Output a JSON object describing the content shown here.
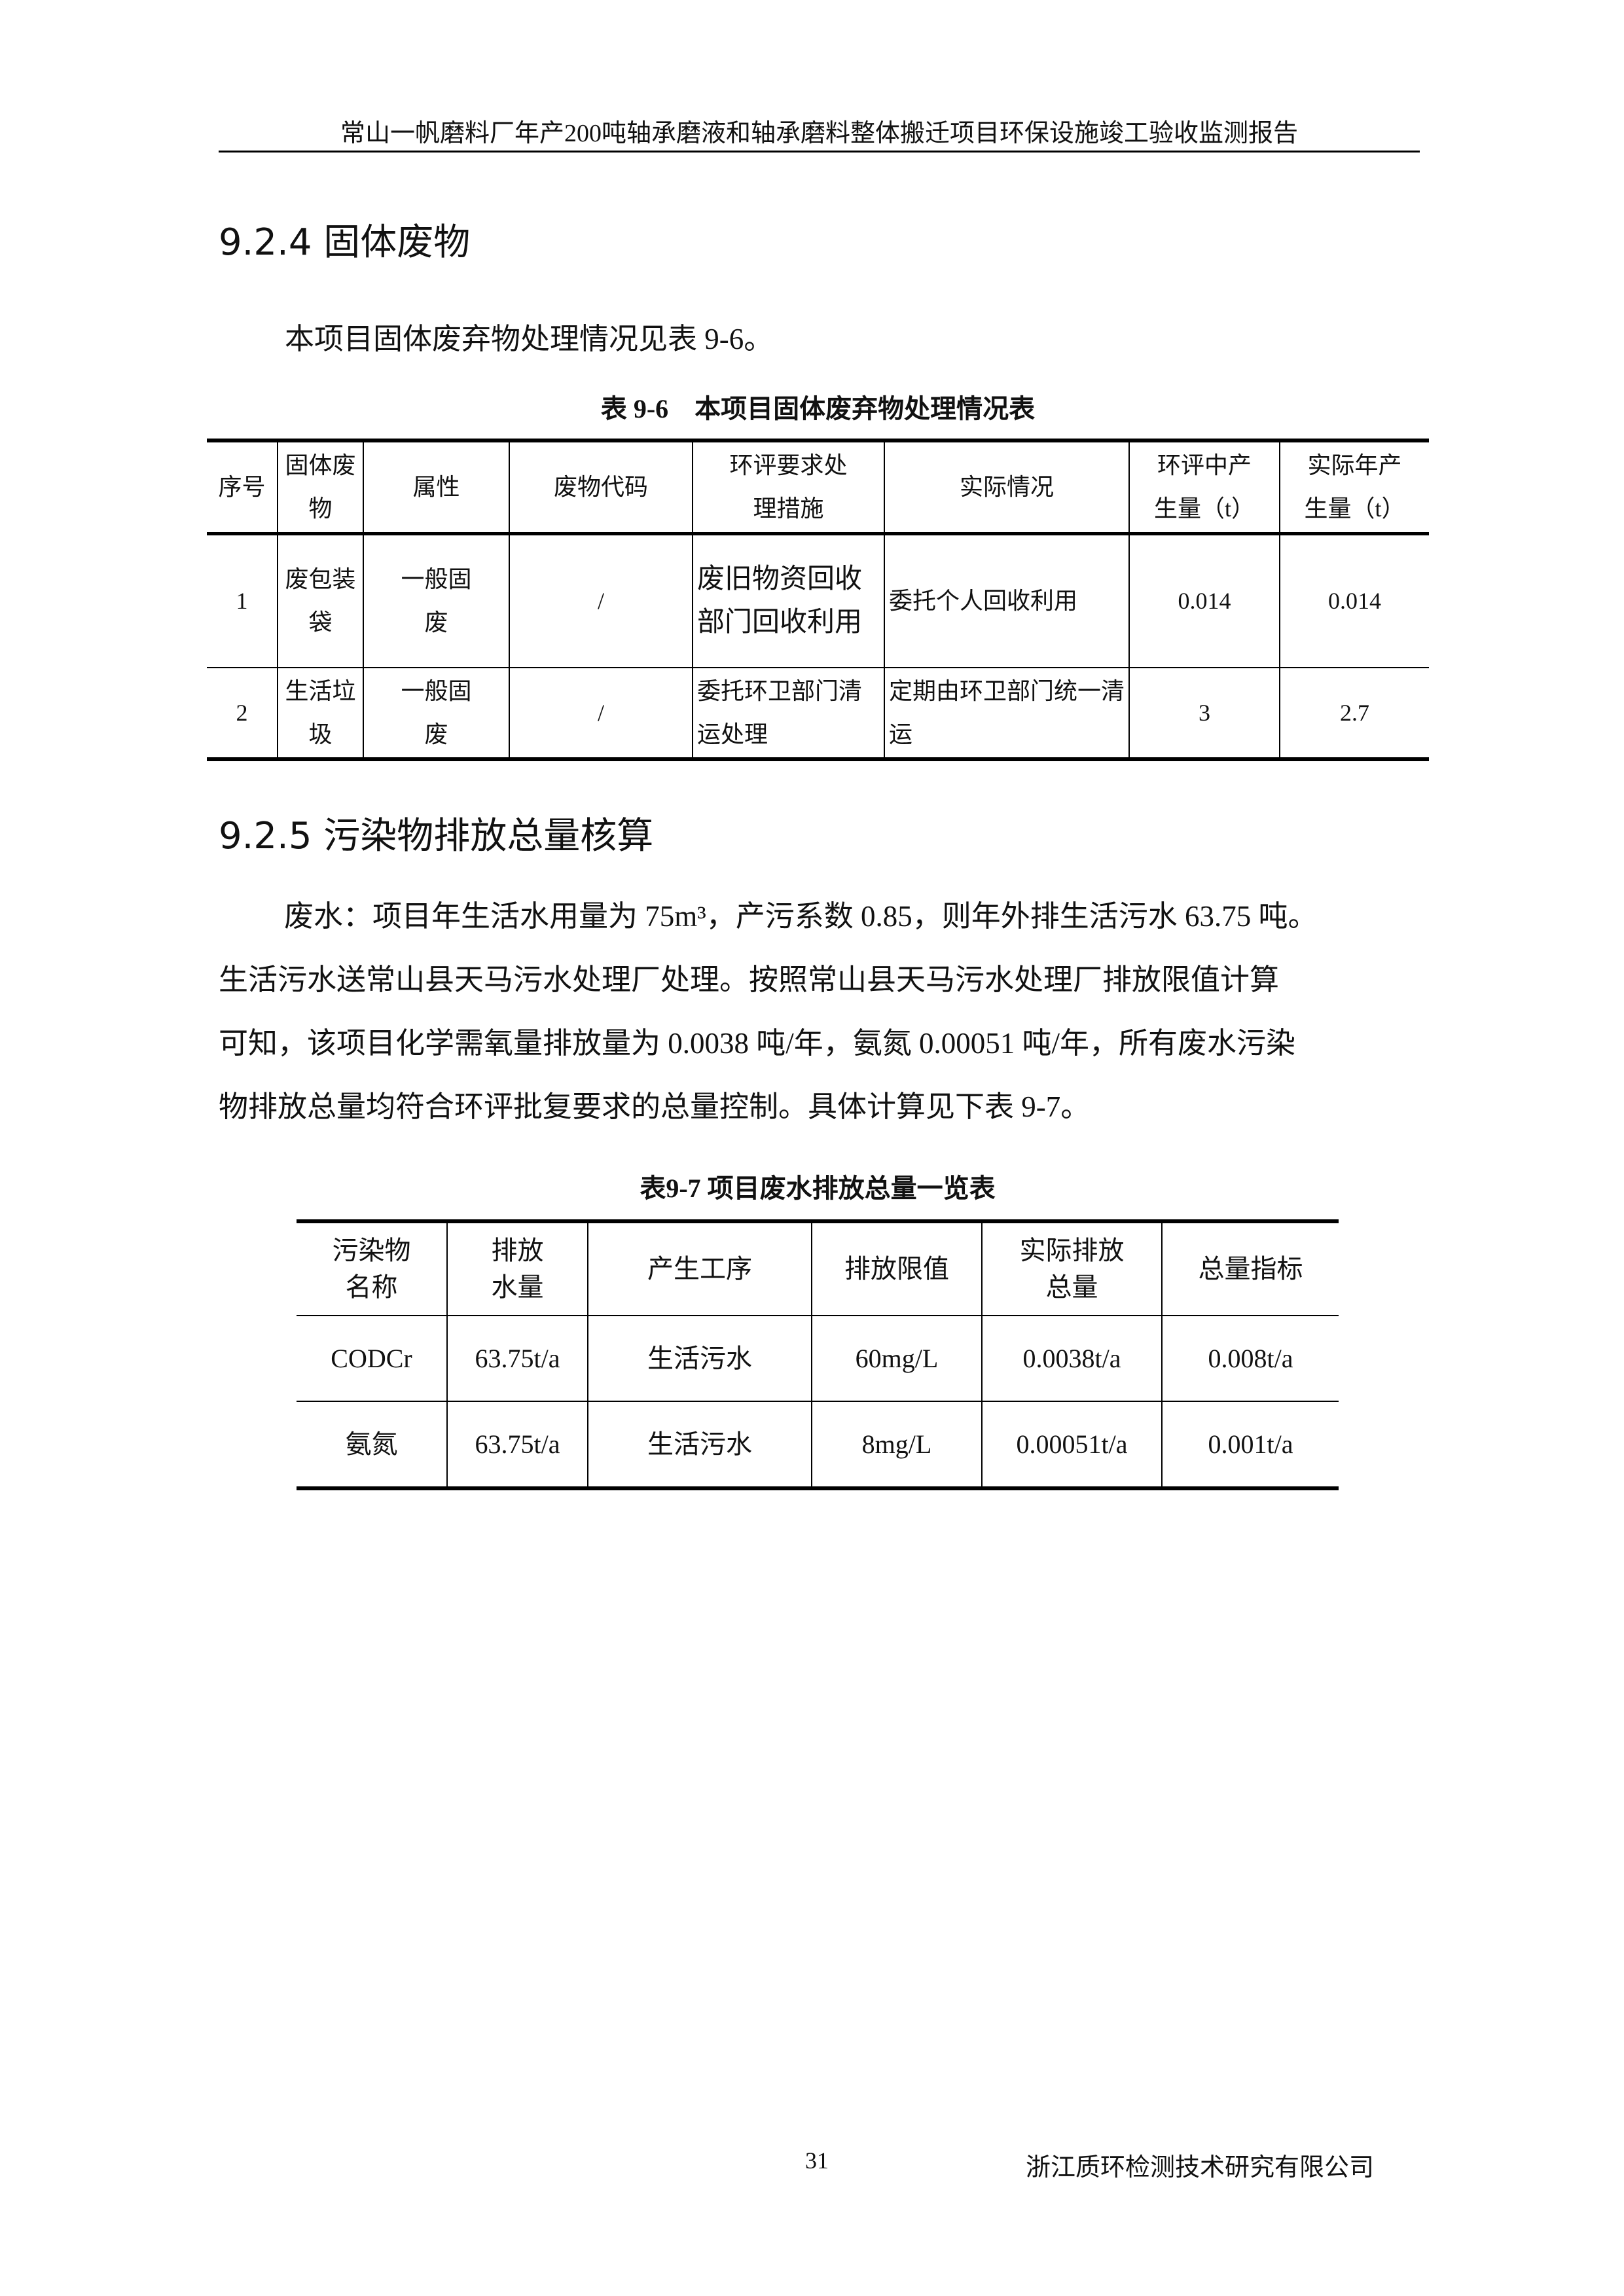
{
  "header": "常山一帆磨料厂年产200吨轴承磨液和轴承磨料整体搬迁项目环保设施竣工验收监测报告",
  "section1": {
    "title": "9.2.4 固体废物",
    "intro": "本项目固体废弃物处理情况见表 9-6。",
    "caption": "表 9-6　本项目固体废弃物处理情况表",
    "headers": [
      "序号",
      "固体废物",
      "属性",
      "废物代码",
      "环评要求处理措施",
      "实际情况",
      "环评中产生量（t）",
      "实际年产生量（t）"
    ],
    "rows": [
      [
        "1",
        "废包装袋",
        "一般固废",
        "/",
        "废旧物资回收部门回收利用",
        "委托个人回收利用",
        "0.014",
        "0.014"
      ],
      [
        "2",
        "生活垃圾",
        "一般固废",
        "/",
        "委托环卫部门清运处理",
        "定期由环卫部门统一清运",
        "3",
        "2.7"
      ]
    ]
  },
  "section2": {
    "title": "9.2.5 污染物排放总量核算",
    "para": [
      "废水：项目年生活水用量为 75m³，产污系数 0.85，则年外排生活污水 63.75 吨。",
      "生活污水送常山县天马污水处理厂处理。按照常山县天马污水处理厂排放限值计算",
      "可知，该项目化学需氧量排放量为 0.0038 吨/年，氨氮 0.00051 吨/年，所有废水污染",
      "物排放总量均符合环评批复要求的总量控制。具体计算见下表 9-7。"
    ],
    "caption": "表9-7 项目废水排放总量一览表",
    "headers": [
      "污染物名称",
      "排放水量",
      "产生工序",
      "排放限值",
      "实际排放总量",
      "总量指标"
    ],
    "rows": [
      [
        "CODCr",
        "63.75t/a",
        "生活污水",
        "60mg/L",
        "0.0038t/a",
        "0.008t/a"
      ],
      [
        "氨氮",
        "63.75t/a",
        "生活污水",
        "8mg/L",
        "0.00051t/a",
        "0.001t/a"
      ]
    ]
  },
  "footer": {
    "page": "31",
    "company": "浙江质环检测技术研究有限公司"
  }
}
